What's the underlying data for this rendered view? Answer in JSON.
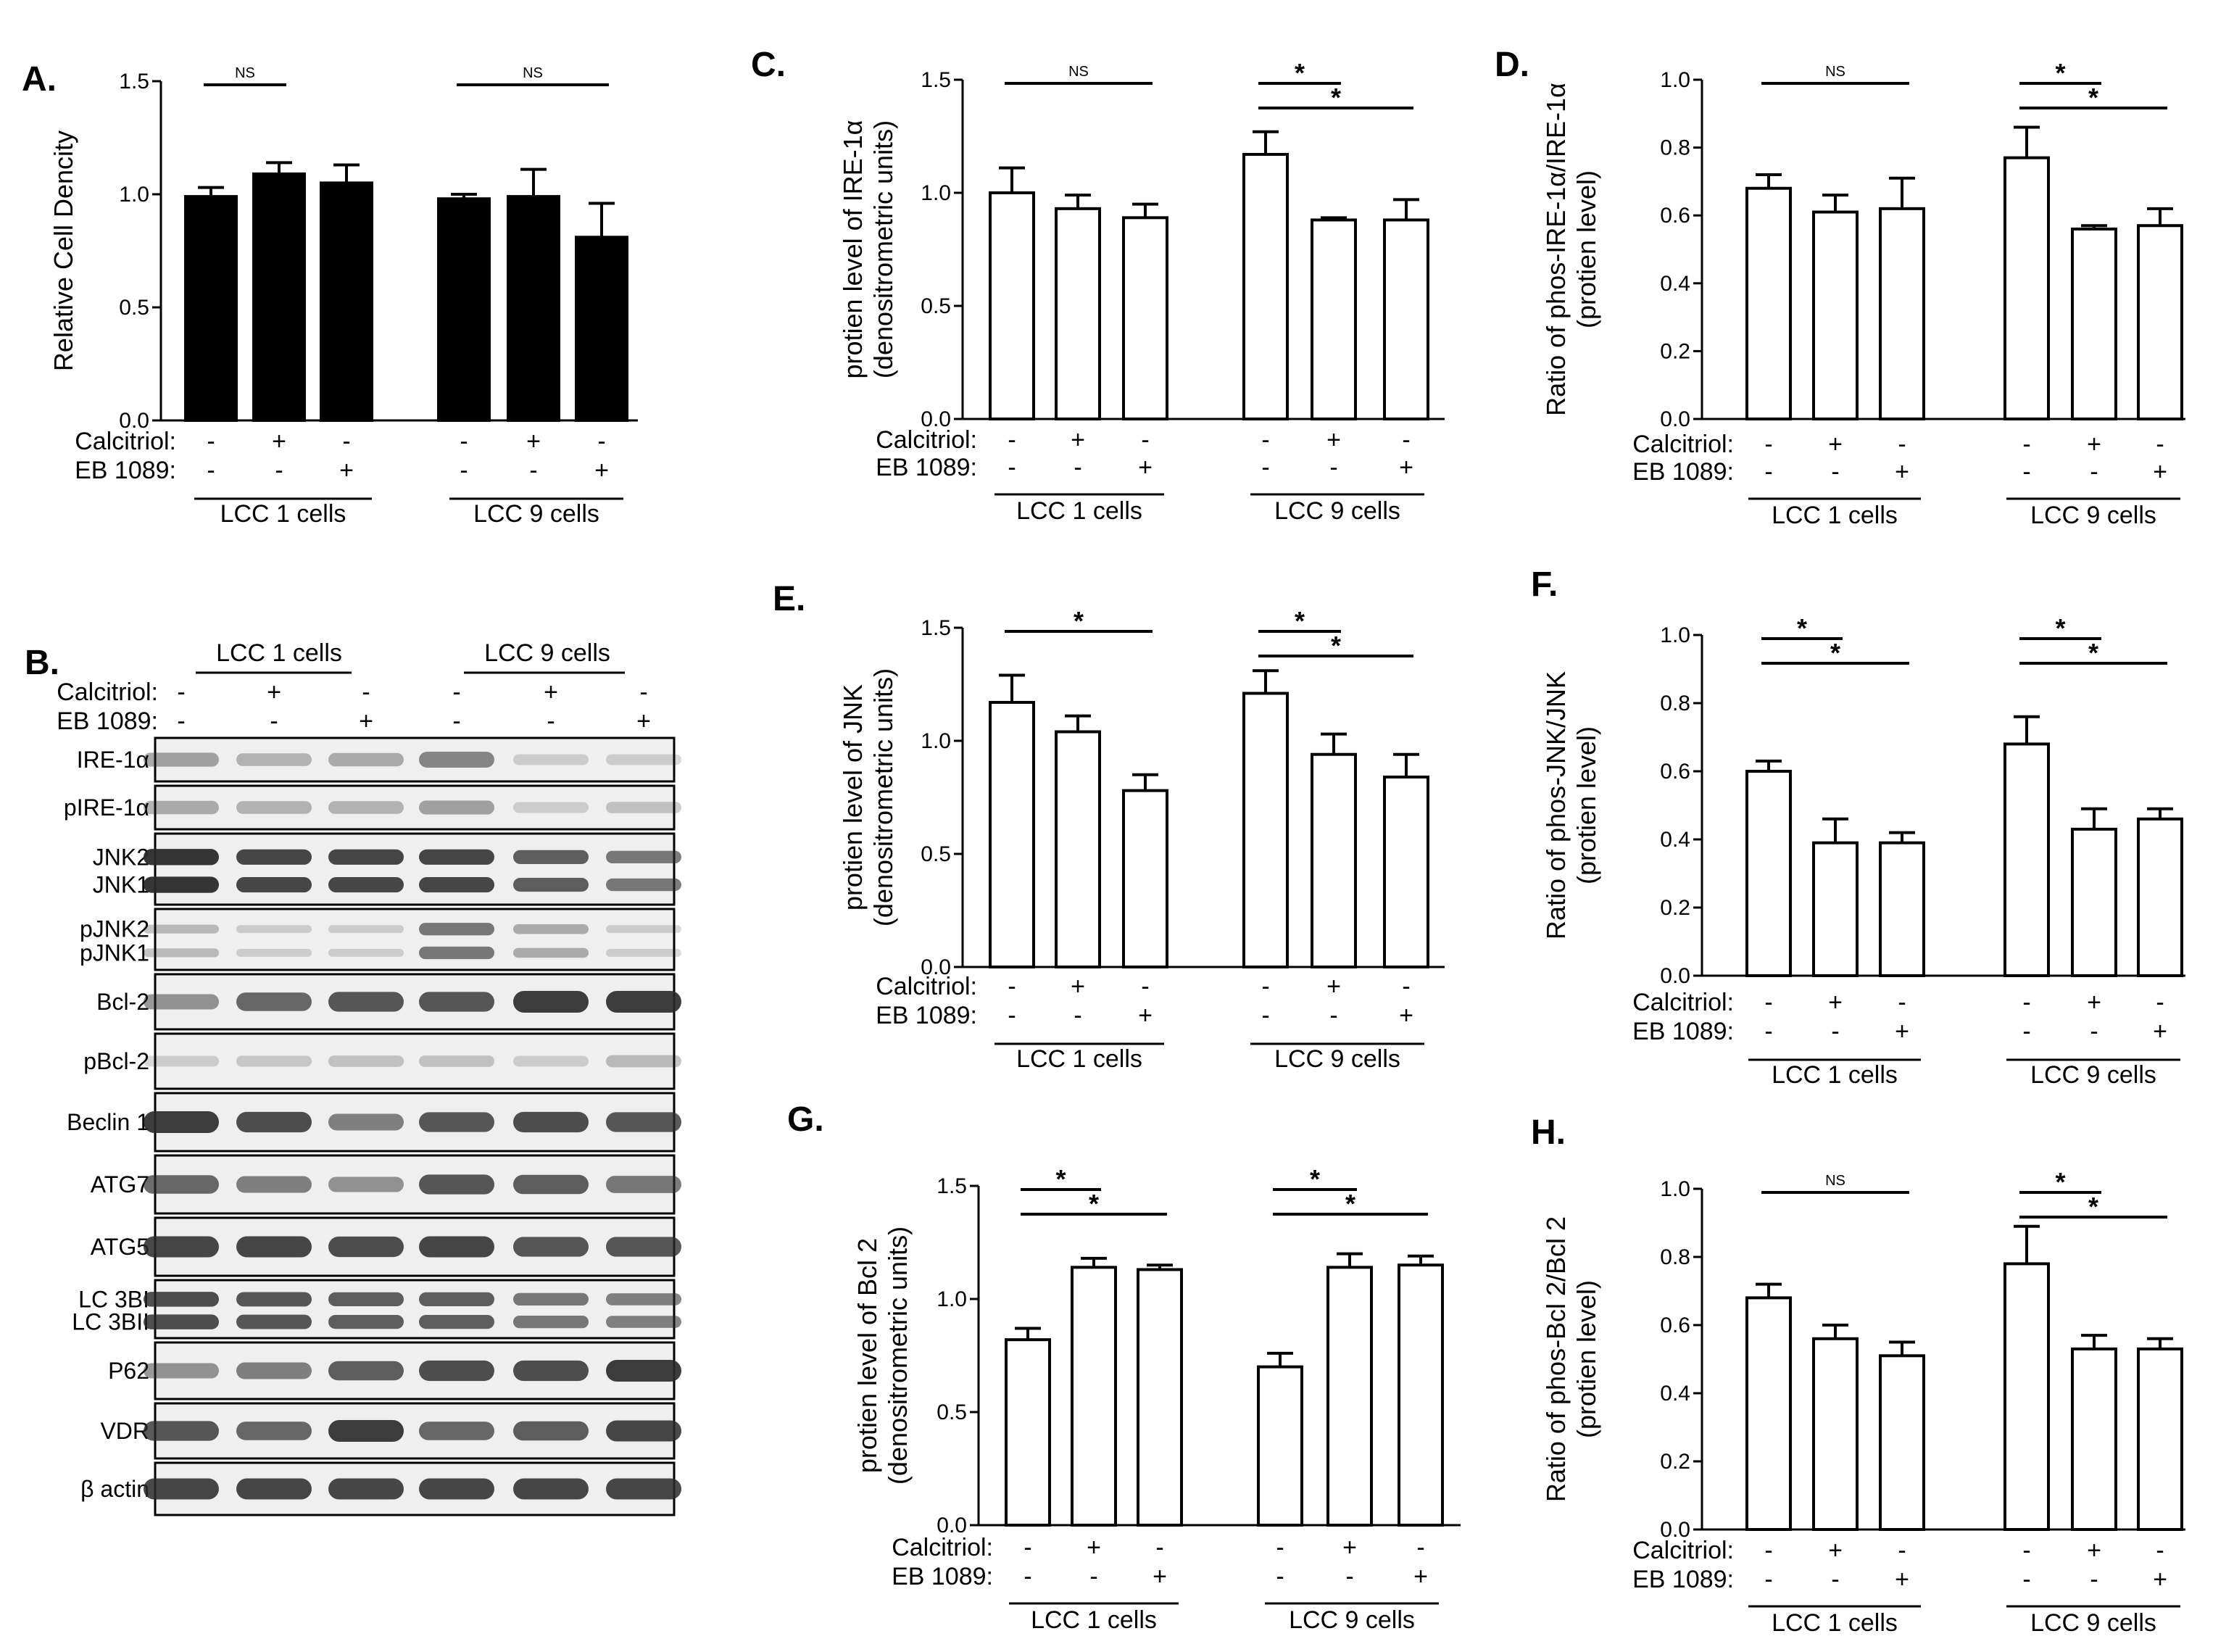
{
  "treatment_labels": {
    "calcitriol": "Calcitriol:",
    "eb1089": "EB 1089:"
  },
  "treatment_signs": {
    "calcitriol": [
      "-",
      "+",
      "-",
      "-",
      "+",
      "-"
    ],
    "eb1089": [
      "-",
      "-",
      "+",
      "-",
      "-",
      "+"
    ]
  },
  "groups": [
    "LCC 1 cells",
    "LCC 9 cells"
  ],
  "colors": {
    "ink": "#000000",
    "bar_filled": "#000000",
    "bar_open": "#ffffff",
    "blot_bg": "#efefef",
    "band": "#2a2a2a"
  },
  "chart_data": [
    {
      "type": "bar",
      "panel": "A.",
      "ylabel": [
        "Relative Cell Dencity"
      ],
      "ylim": [
        0,
        1.5
      ],
      "ticks": [
        0.0,
        0.5,
        1.0,
        1.5
      ],
      "tick_labels": [
        "0.0",
        "0.5",
        "1.0",
        "1.5"
      ],
      "fill": "filled",
      "values": [
        0.99,
        1.09,
        1.05,
        0.98,
        0.99,
        0.81
      ],
      "errors": [
        0.04,
        0.05,
        0.08,
        0.02,
        0.12,
        0.15
      ],
      "sig": [
        {
          "from": 0,
          "to": 1,
          "label": "NS"
        },
        {
          "from": 3,
          "to": 5,
          "label": "NS"
        }
      ]
    },
    {
      "type": "bar",
      "panel": "C.",
      "ylabel": [
        "protien level of IRE-1α",
        "(denositrometric  units)"
      ],
      "ylim": [
        0,
        1.5
      ],
      "ticks": [
        0.0,
        0.5,
        1.0,
        1.5
      ],
      "tick_labels": [
        "0.0",
        "0.5",
        "1.0",
        "1.5"
      ],
      "fill": "open",
      "values": [
        1.0,
        0.93,
        0.89,
        1.17,
        0.88,
        0.88
      ],
      "errors": [
        0.11,
        0.06,
        0.06,
        0.1,
        0.01,
        0.09
      ],
      "sig": [
        {
          "from": 0,
          "to": 2,
          "label": "NS"
        },
        {
          "from": 3,
          "to": 4,
          "label": "*"
        },
        {
          "from": 3,
          "to": 5,
          "label": "*"
        }
      ]
    },
    {
      "type": "bar",
      "panel": "D.",
      "ylabel": [
        "Ratio of phos-IRE-1α/IRE-1α",
        "(protien level)"
      ],
      "ylim": [
        0,
        1.0
      ],
      "ticks": [
        0.0,
        0.2,
        0.4,
        0.6,
        0.8,
        1.0
      ],
      "tick_labels": [
        "0.0",
        "0.2",
        "0.4",
        "0.6",
        "0.8",
        "1.0"
      ],
      "fill": "open",
      "values": [
        0.68,
        0.61,
        0.62,
        0.77,
        0.56,
        0.57
      ],
      "errors": [
        0.04,
        0.05,
        0.09,
        0.09,
        0.01,
        0.05
      ],
      "sig": [
        {
          "from": 0,
          "to": 2,
          "label": "NS"
        },
        {
          "from": 3,
          "to": 4,
          "label": "*"
        },
        {
          "from": 3,
          "to": 5,
          "label": "*"
        }
      ]
    },
    {
      "type": "bar",
      "panel": "E.",
      "ylabel": [
        "protien level of JNK",
        "(denositrometric  units)"
      ],
      "ylim": [
        0,
        1.5
      ],
      "ticks": [
        0.0,
        0.5,
        1.0,
        1.5
      ],
      "tick_labels": [
        "0.0",
        "0.5",
        "1.0",
        "1.5"
      ],
      "fill": "open",
      "values": [
        1.17,
        1.04,
        0.78,
        1.21,
        0.94,
        0.84
      ],
      "errors": [
        0.12,
        0.07,
        0.07,
        0.1,
        0.09,
        0.1
      ],
      "sig": [
        {
          "from": 0,
          "to": 2,
          "label": "*"
        },
        {
          "from": 3,
          "to": 4,
          "label": "*"
        },
        {
          "from": 3,
          "to": 5,
          "label": "*"
        }
      ]
    },
    {
      "type": "bar",
      "panel": "F.",
      "ylabel": [
        "Ratio of phos-JNK/JNK",
        "(protien level)"
      ],
      "ylim": [
        0,
        1.0
      ],
      "ticks": [
        0.0,
        0.2,
        0.4,
        0.6,
        0.8,
        1.0
      ],
      "tick_labels": [
        "0.0",
        "0.2",
        "0.4",
        "0.6",
        "0.8",
        "1.0"
      ],
      "fill": "open",
      "values": [
        0.6,
        0.39,
        0.39,
        0.68,
        0.43,
        0.46
      ],
      "errors": [
        0.03,
        0.07,
        0.03,
        0.08,
        0.06,
        0.03
      ],
      "sig": [
        {
          "from": 0,
          "to": 1,
          "label": "*"
        },
        {
          "from": 0,
          "to": 2,
          "label": "*"
        },
        {
          "from": 3,
          "to": 4,
          "label": "*"
        },
        {
          "from": 3,
          "to": 5,
          "label": "*"
        }
      ]
    },
    {
      "type": "bar",
      "panel": "G.",
      "ylabel": [
        "protien level of Bcl 2",
        "(denositrometric  units)"
      ],
      "ylim": [
        0,
        1.5
      ],
      "ticks": [
        0.0,
        0.5,
        1.0,
        1.5
      ],
      "tick_labels": [
        "0.0",
        "0.5",
        "1.0",
        "1.5"
      ],
      "fill": "open",
      "values": [
        0.82,
        1.14,
        1.13,
        0.7,
        1.14,
        1.15
      ],
      "errors": [
        0.05,
        0.04,
        0.02,
        0.06,
        0.06,
        0.04
      ],
      "sig": [
        {
          "from": 0,
          "to": 1,
          "label": "*"
        },
        {
          "from": 0,
          "to": 2,
          "label": "*"
        },
        {
          "from": 3,
          "to": 4,
          "label": "*"
        },
        {
          "from": 3,
          "to": 5,
          "label": "*"
        }
      ]
    },
    {
      "type": "bar",
      "panel": "H.",
      "ylabel": [
        "Ratio of phos-Bcl 2/Bcl 2",
        "(protien level)"
      ],
      "ylim": [
        0,
        1.0
      ],
      "ticks": [
        0.0,
        0.2,
        0.4,
        0.6,
        0.8,
        1.0
      ],
      "tick_labels": [
        "0.0",
        "0.2",
        "0.4",
        "0.6",
        "0.8",
        "1.0"
      ],
      "fill": "open",
      "values": [
        0.68,
        0.56,
        0.51,
        0.78,
        0.53,
        0.53
      ],
      "errors": [
        0.04,
        0.04,
        0.04,
        0.11,
        0.04,
        0.03
      ],
      "sig": [
        {
          "from": 0,
          "to": 2,
          "label": "NS"
        },
        {
          "from": 3,
          "to": 4,
          "label": "*"
        },
        {
          "from": 3,
          "to": 5,
          "label": "*"
        }
      ]
    }
  ],
  "blot": {
    "panel": "B.",
    "rows": [
      {
        "labels": [
          "IRE-1α"
        ],
        "intensity": [
          0.35,
          0.25,
          0.3,
          0.5,
          0.1,
          0.1
        ]
      },
      {
        "labels": [
          "pIRE-1α"
        ],
        "intensity": [
          0.3,
          0.25,
          0.25,
          0.35,
          0.1,
          0.15
        ]
      },
      {
        "labels": [
          "JNK2",
          "JNK1"
        ],
        "intensity": [
          1.0,
          0.9,
          0.9,
          0.9,
          0.75,
          0.6
        ]
      },
      {
        "labels": [
          "pJNK2",
          "pJNK1"
        ],
        "intensity": [
          0.2,
          0.1,
          0.1,
          0.6,
          0.3,
          0.1
        ]
      },
      {
        "labels": [
          "Bcl-2"
        ],
        "intensity": [
          0.45,
          0.7,
          0.8,
          0.8,
          0.95,
          0.95
        ]
      },
      {
        "labels": [
          "pBcl-2"
        ],
        "intensity": [
          0.1,
          0.12,
          0.15,
          0.15,
          0.1,
          0.2
        ]
      },
      {
        "labels": [
          "Beclin 1"
        ],
        "intensity": [
          0.95,
          0.85,
          0.55,
          0.8,
          0.85,
          0.8
        ]
      },
      {
        "labels": [
          "ATG7"
        ],
        "intensity": [
          0.7,
          0.55,
          0.45,
          0.8,
          0.75,
          0.6
        ]
      },
      {
        "labels": [
          "ATG5"
        ],
        "intensity": [
          0.9,
          0.9,
          0.85,
          0.9,
          0.8,
          0.8
        ]
      },
      {
        "labels": [
          "LC 3BI",
          "LC 3BII"
        ],
        "intensity": [
          0.85,
          0.8,
          0.75,
          0.75,
          0.6,
          0.55
        ]
      },
      {
        "labels": [
          "P62"
        ],
        "intensity": [
          0.45,
          0.55,
          0.75,
          0.85,
          0.85,
          0.95
        ]
      },
      {
        "labels": [
          "VDR"
        ],
        "intensity": [
          0.8,
          0.7,
          0.95,
          0.7,
          0.75,
          0.9
        ]
      },
      {
        "labels": [
          "β actin"
        ],
        "intensity": [
          0.9,
          0.9,
          0.9,
          0.9,
          0.9,
          0.9
        ]
      }
    ]
  }
}
